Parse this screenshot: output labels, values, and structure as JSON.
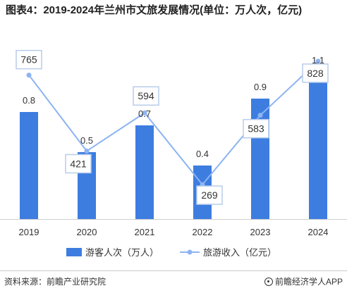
{
  "title": "图表4：2019-2024年兰州市文旅发展情况(单位：万人次，亿元)",
  "footer": {
    "source": "资料来源：前瞻产业研究院",
    "brand": "前瞻经济学人APP",
    "brand_icon": "logo-icon"
  },
  "colors": {
    "bar": "#3d7de0",
    "line": "#8db4f2",
    "label_box": "#b9ccea"
  },
  "chart_data": {
    "type": "bar",
    "categories": [
      "2019",
      "2020",
      "2021",
      "2022",
      "2023",
      "2024"
    ],
    "series": [
      {
        "name": "游客人次（万人）",
        "type": "bar",
        "values": [
          0.8,
          0.5,
          0.7,
          0.4,
          0.9,
          1.1
        ],
        "value_labels": [
          "0.8",
          "0.5",
          "0.7",
          "0.4",
          "0.9",
          "1.1"
        ]
      },
      {
        "name": "旅游收入（亿元）",
        "type": "line",
        "values": [
          765,
          421,
          594,
          269,
          583,
          828
        ],
        "value_labels": [
          "765",
          "421",
          "594",
          "269",
          "583",
          "828"
        ]
      }
    ],
    "legend": "bottom"
  }
}
